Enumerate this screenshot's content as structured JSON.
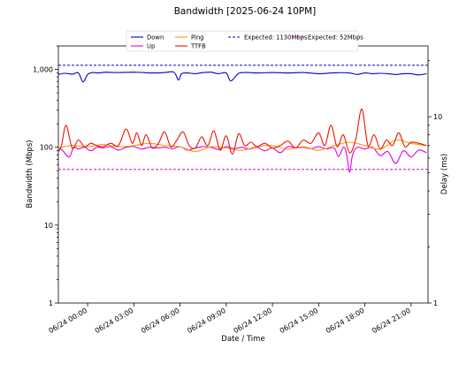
{
  "chart_data": {
    "type": "line",
    "title": "Bandwidth [2025-06-24 10PM]",
    "xlabel": "Date / Time",
    "ylabel_left": "Bandwidth (Mbps)",
    "ylabel_right": "Delay (ms)",
    "x_ticks": [
      "06/24 00:00",
      "06/24 03:00",
      "06/24 06:00",
      "06/24 09:00",
      "06/24 12:00",
      "06/24 15:00",
      "06/24 18:00",
      "06/24 21:00"
    ],
    "x_range_hours": [
      -1.9,
      22.1
    ],
    "y_left_ticks": [
      "1",
      "10",
      "100",
      "1,000"
    ],
    "y_left_range": [
      1,
      2000
    ],
    "y_left_scale": "log",
    "y_right_ticks": [
      "1",
      "10"
    ],
    "y_right_range": [
      1,
      24
    ],
    "y_right_scale": "log",
    "legend_placement": "top-center",
    "grid": false,
    "series": [
      {
        "name": "Down",
        "axis": "left",
        "color": "#0000cc",
        "x": [
          -1.9,
          -1.5,
          -1.0,
          -0.6,
          -0.3,
          0.0,
          0.3,
          0.7,
          1.2,
          1.8,
          2.5,
          3.0,
          3.6,
          4.2,
          5.0,
          5.6,
          5.9,
          6.1,
          6.5,
          7.0,
          7.5,
          8.0,
          8.5,
          9.0,
          9.3,
          9.8,
          10.4,
          11.0,
          12.0,
          13.0,
          14.0,
          15.0,
          16.0,
          17.0,
          17.5,
          18.0,
          18.5,
          19.0,
          19.5,
          20.0,
          20.5,
          21.0,
          21.5,
          22.0
        ],
        "values": [
          860,
          890,
          870,
          900,
          690,
          860,
          910,
          900,
          920,
          910,
          915,
          920,
          910,
          900,
          910,
          920,
          730,
          880,
          900,
          880,
          910,
          920,
          880,
          900,
          710,
          890,
          910,
          900,
          910,
          900,
          910,
          880,
          905,
          900,
          860,
          900,
          880,
          890,
          880,
          860,
          880,
          880,
          850,
          880
        ]
      },
      {
        "name": "Up",
        "axis": "left",
        "color": "#dd00dd",
        "x": [
          -1.9,
          -1.6,
          -1.2,
          -0.9,
          -0.6,
          -0.2,
          0.2,
          0.6,
          1.0,
          1.5,
          2.0,
          2.5,
          3.0,
          3.5,
          4.0,
          4.5,
          5.0,
          5.5,
          6.0,
          6.5,
          7.0,
          7.5,
          8.0,
          8.5,
          9.0,
          9.5,
          10.0,
          10.5,
          11.0,
          11.5,
          12.0,
          12.5,
          13.0,
          13.5,
          14.0,
          14.5,
          15.0,
          15.5,
          16.0,
          16.3,
          16.6,
          16.8,
          17.0,
          17.2,
          17.5,
          18.0,
          18.5,
          19.0,
          19.5,
          20.0,
          20.5,
          21.0,
          21.5,
          22.0
        ],
        "values": [
          100,
          90,
          75,
          100,
          95,
          100,
          90,
          100,
          98,
          102,
          92,
          100,
          102,
          95,
          100,
          98,
          100,
          96,
          102,
          92,
          98,
          102,
          100,
          94,
          102,
          96,
          100,
          95,
          100,
          90,
          98,
          85,
          102,
          98,
          100,
          96,
          102,
          95,
          98,
          76,
          100,
          85,
          48,
          80,
          100,
          95,
          100,
          78,
          88,
          62,
          90,
          75,
          92,
          85
        ]
      },
      {
        "name": "Expected: 1130Mbps",
        "axis": "left",
        "color": "#0000cc",
        "dashed": true,
        "x": [
          -1.9,
          22.1
        ],
        "values": [
          1130,
          1130
        ]
      },
      {
        "name": "Expected: 52Mbps",
        "axis": "left",
        "color": "#dd00dd",
        "dashed": true,
        "x": [
          -1.9,
          22.1
        ],
        "values": [
          52,
          52
        ]
      },
      {
        "name": "Ping",
        "axis": "right",
        "color": "#ff9900",
        "x": [
          -1.9,
          -1.0,
          0.0,
          1.0,
          2.0,
          3.0,
          4.0,
          5.0,
          6.0,
          7.0,
          8.0,
          9.0,
          10.0,
          11.0,
          12.0,
          13.0,
          14.0,
          15.0,
          16.0,
          17.0,
          18.0,
          19.0,
          20.0,
          21.0,
          22.0
        ],
        "values": [
          6.8,
          7.0,
          6.9,
          7.1,
          6.9,
          7.0,
          7.2,
          7.0,
          6.9,
          6.5,
          6.9,
          6.8,
          6.6,
          6.9,
          7.0,
          6.7,
          6.9,
          6.6,
          7.0,
          7.3,
          7.0,
          6.7,
          7.5,
          7.2,
          7.0
        ]
      },
      {
        "name": "TTFB",
        "axis": "right",
        "color": "#ee1100",
        "x": [
          -1.9,
          -1.7,
          -1.4,
          -1.0,
          -0.6,
          -0.2,
          0.2,
          0.6,
          1.0,
          1.5,
          2.0,
          2.5,
          2.9,
          3.2,
          3.5,
          3.8,
          4.2,
          4.6,
          5.0,
          5.4,
          5.8,
          6.2,
          6.6,
          7.0,
          7.4,
          7.8,
          8.2,
          8.6,
          9.0,
          9.4,
          9.8,
          10.2,
          10.6,
          11.0,
          11.5,
          12.0,
          12.5,
          13.0,
          13.5,
          14.0,
          14.5,
          15.0,
          15.4,
          15.8,
          16.2,
          16.6,
          17.0,
          17.4,
          17.8,
          18.2,
          18.6,
          19.0,
          19.4,
          19.8,
          20.2,
          20.6,
          21.0,
          21.5,
          22.0
        ],
        "values": [
          6.5,
          7.0,
          9.0,
          6.8,
          7.5,
          6.9,
          7.2,
          7.0,
          6.9,
          7.2,
          7.0,
          8.6,
          7.2,
          8.2,
          7.0,
          8.0,
          6.8,
          7.2,
          8.3,
          6.9,
          7.5,
          8.3,
          7.0,
          6.8,
          7.8,
          7.0,
          8.4,
          6.6,
          7.9,
          6.3,
          8.1,
          7.0,
          7.3,
          6.9,
          7.2,
          6.8,
          7.0,
          7.4,
          6.8,
          7.5,
          7.2,
          8.2,
          7.0,
          9.0,
          6.9,
          8.0,
          6.4,
          7.5,
          11.0,
          7.0,
          8.0,
          6.7,
          7.5,
          7.0,
          8.2,
          6.9,
          7.3,
          7.2,
          7.0
        ]
      }
    ]
  }
}
